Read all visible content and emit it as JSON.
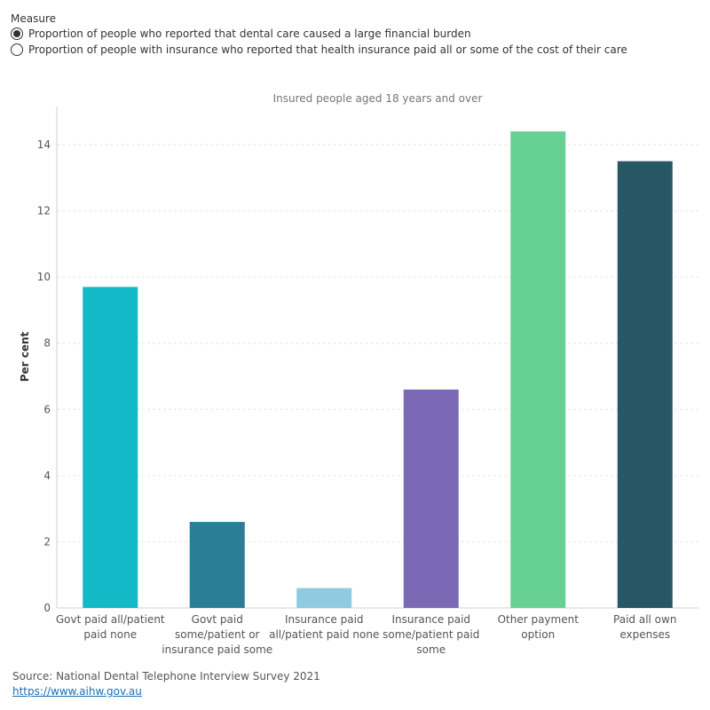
{
  "measure": {
    "title": "Measure",
    "options": [
      {
        "label": "Proportion of people who reported that dental care caused a large financial burden",
        "checked": true
      },
      {
        "label": "Proportion of people with insurance who reported that health insurance paid all or some of the cost of their care",
        "checked": false
      }
    ]
  },
  "chart_data": {
    "type": "bar",
    "title": "Insured people aged 18 years and over",
    "xlabel": "",
    "ylabel": "Per cent",
    "ylim": [
      0,
      15
    ],
    "yticks": [
      0,
      2,
      4,
      6,
      8,
      10,
      12,
      14
    ],
    "grid": true,
    "categories": [
      [
        "Govt paid all/patient",
        "paid none"
      ],
      [
        "Govt paid",
        "some/patient or",
        "insurance paid some"
      ],
      [
        "Insurance paid",
        "all/patient paid none"
      ],
      [
        "Insurance paid",
        "some/patient paid",
        "some"
      ],
      [
        "Other payment",
        "option"
      ],
      [
        "Paid all own",
        "expenses"
      ]
    ],
    "values": [
      9.7,
      2.6,
      0.6,
      6.6,
      14.4,
      13.5
    ],
    "colors": [
      "#13b9c6",
      "#2a7e96",
      "#8ecae0",
      "#7b69b5",
      "#66d192",
      "#275665"
    ]
  },
  "footer": {
    "source": "Source: National Dental Telephone Interview Survey 2021",
    "link": "https://www.aihw.gov.au"
  }
}
